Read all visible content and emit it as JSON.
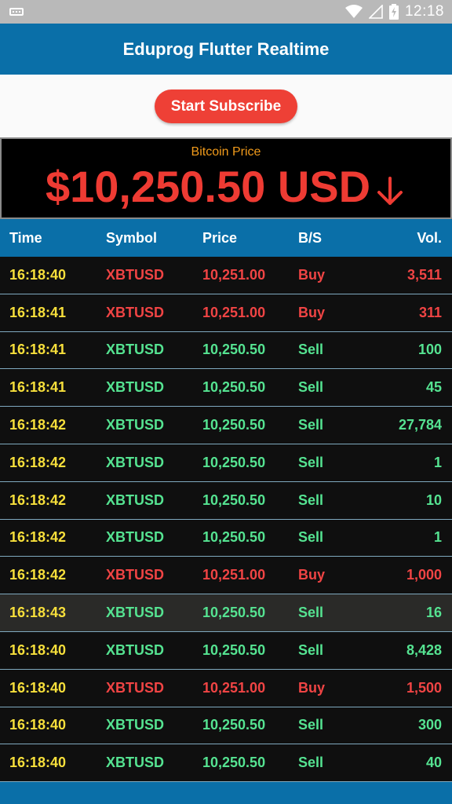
{
  "status_bar": {
    "time": "12:18",
    "icons": [
      "keyboard-icon",
      "wifi-icon",
      "no-signal-icon",
      "battery-charging-icon"
    ]
  },
  "app_bar": {
    "title": "Eduprog Flutter Realtime"
  },
  "subscribe_button": {
    "label": "Start Subscribe"
  },
  "price_panel": {
    "label": "Bitcoin Price",
    "value": "$10,250.50 USD",
    "trend_icon": "arrow-down-icon",
    "colors": {
      "label": "#f09a1b",
      "value": "#ee3b33"
    }
  },
  "table": {
    "headers": {
      "time": "Time",
      "symbol": "Symbol",
      "price": "Price",
      "side": "B/S",
      "volume": "Vol."
    },
    "rows": [
      {
        "time": "16:18:40",
        "symbol": "XBTUSD",
        "price": "10,251.00",
        "side": "Buy",
        "volume": "3,511"
      },
      {
        "time": "16:18:41",
        "symbol": "XBTUSD",
        "price": "10,251.00",
        "side": "Buy",
        "volume": "311"
      },
      {
        "time": "16:18:41",
        "symbol": "XBTUSD",
        "price": "10,250.50",
        "side": "Sell",
        "volume": "100"
      },
      {
        "time": "16:18:41",
        "symbol": "XBTUSD",
        "price": "10,250.50",
        "side": "Sell",
        "volume": "45"
      },
      {
        "time": "16:18:42",
        "symbol": "XBTUSD",
        "price": "10,250.50",
        "side": "Sell",
        "volume": "27,784"
      },
      {
        "time": "16:18:42",
        "symbol": "XBTUSD",
        "price": "10,250.50",
        "side": "Sell",
        "volume": "1"
      },
      {
        "time": "16:18:42",
        "symbol": "XBTUSD",
        "price": "10,250.50",
        "side": "Sell",
        "volume": "10"
      },
      {
        "time": "16:18:42",
        "symbol": "XBTUSD",
        "price": "10,250.50",
        "side": "Sell",
        "volume": "1"
      },
      {
        "time": "16:18:42",
        "symbol": "XBTUSD",
        "price": "10,251.00",
        "side": "Buy",
        "volume": "1,000"
      },
      {
        "time": "16:18:43",
        "symbol": "XBTUSD",
        "price": "10,250.50",
        "side": "Sell",
        "volume": "16"
      },
      {
        "time": "16:18:40",
        "symbol": "XBTUSD",
        "price": "10,250.50",
        "side": "Sell",
        "volume": "8,428"
      },
      {
        "time": "16:18:40",
        "symbol": "XBTUSD",
        "price": "10,251.00",
        "side": "Buy",
        "volume": "1,500"
      },
      {
        "time": "16:18:40",
        "symbol": "XBTUSD",
        "price": "10,250.50",
        "side": "Sell",
        "volume": "300"
      },
      {
        "time": "16:18:40",
        "symbol": "XBTUSD",
        "price": "10,250.50",
        "side": "Sell",
        "volume": "40"
      }
    ],
    "colors": {
      "time": "#f7df3b",
      "buy": "#f04444",
      "sell": "#55e391",
      "header_bg": "#0a6fa8"
    }
  }
}
